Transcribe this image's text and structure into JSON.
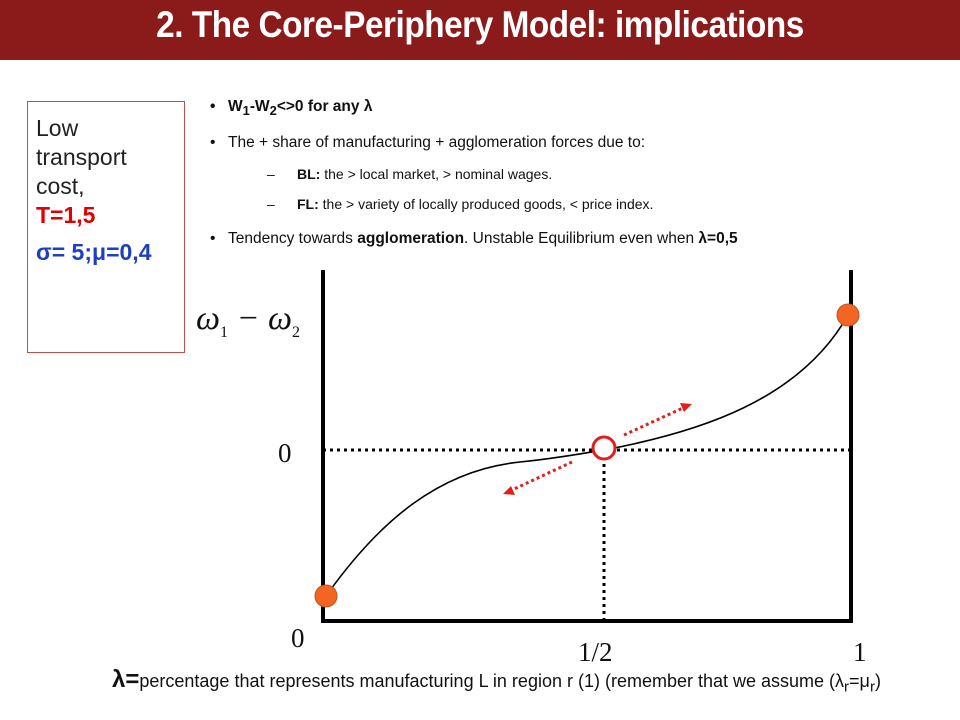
{
  "title": "2. The Core-Periphery Model: implications",
  "sidebox": {
    "line1": "Low",
    "line2": "transport",
    "line3": "cost,",
    "t_value": "T=1,5",
    "params": "σ= 5;μ=0,4"
  },
  "bullets": {
    "b1_w1": "W",
    "b1_s1": "1",
    "b1_mid": "-W",
    "b1_s2": "2",
    "b1_rest": "<>0 for any λ",
    "b2": "The + share of manufacturing + agglomeration forces due to:",
    "sub1_head": "BL:",
    "sub1_text": " the > local market, > nominal wages.",
    "sub2_head": "FL:",
    "sub2_text": " the > variety of locally produced goods, < price index.",
    "b3_pre": "Tendency towards ",
    "b3_bold": "agglomeration",
    "b3_mid": ". Unstable Equilibrium even when ",
    "b3_lambda": "λ=0,5"
  },
  "diagram": {
    "ylabel_a": "ω",
    "ylabel_a_sub": "1",
    "ylabel_minus": " − ",
    "ylabel_b": "ω",
    "ylabel_b_sub": "2",
    "y_zero_label": "0",
    "origin_label": "0",
    "x_half_label": "1/2",
    "x_one_label": "1",
    "colors": {
      "curve": "#000000",
      "stable_point": "#f26522",
      "unstable_ring": "#e0201c",
      "arrows": "#e0201c"
    }
  },
  "footer": {
    "lam": "λ=",
    "text1": "percentage that represents manufacturing L in region r (1) (remember that we assume (λ",
    "sub_r1": "r",
    "eq": "=μ",
    "sub_r2": "r",
    "close": ")"
  }
}
